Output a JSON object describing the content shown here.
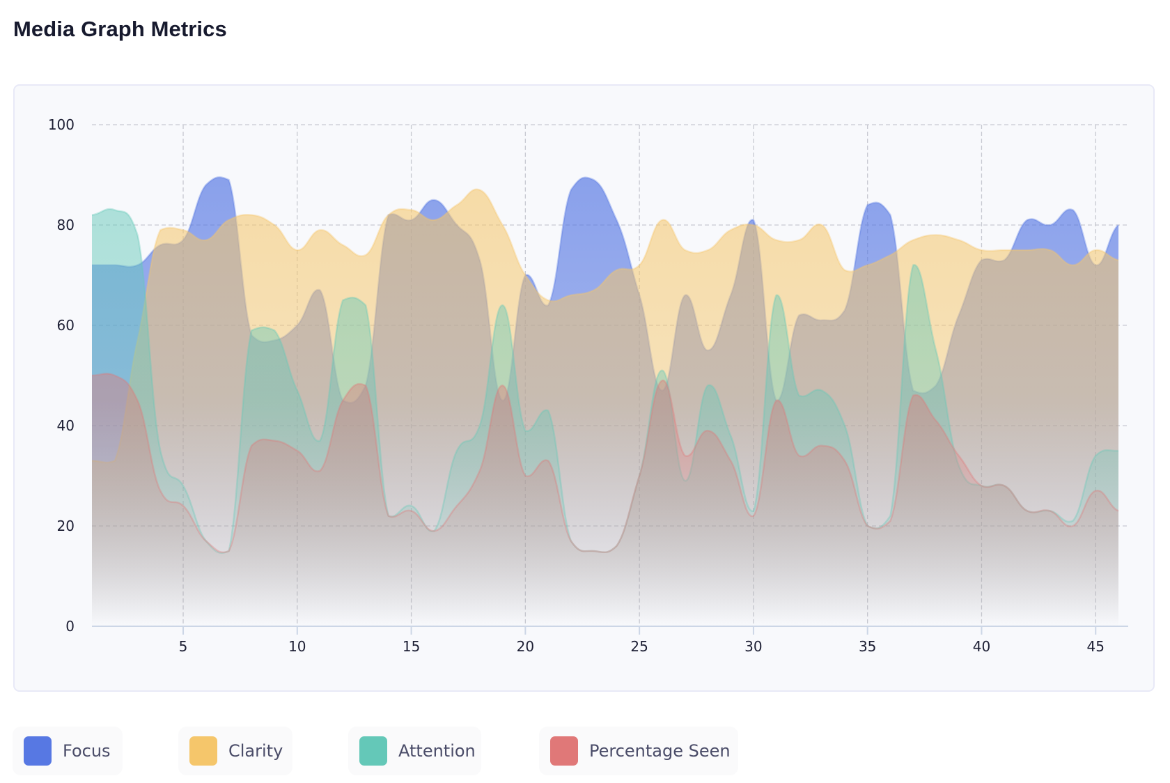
{
  "page": {
    "title": "Media Graph Metrics"
  },
  "legend": [
    {
      "label": "Focus",
      "color": "#5778e3",
      "icon": "square-swatch"
    },
    {
      "label": "Clarity",
      "color": "#f5c66b",
      "icon": "square-swatch"
    },
    {
      "label": "Attention",
      "color": "#64c8b8",
      "icon": "square-swatch"
    },
    {
      "label": "Percentage Seen",
      "color": "#e07878",
      "icon": "square-swatch"
    }
  ],
  "chart_data": {
    "type": "area",
    "title": "Media Graph Metrics",
    "xlabel": "",
    "ylabel": "",
    "xlim": [
      1,
      46
    ],
    "ylim": [
      0,
      100
    ],
    "xticks": [
      5,
      10,
      15,
      20,
      25,
      30,
      35,
      40,
      45
    ],
    "yticks": [
      0,
      20,
      40,
      60,
      80,
      100
    ],
    "grid": true,
    "legend_position": "bottom-left",
    "x": [
      1,
      2,
      3,
      4,
      5,
      6,
      7,
      8,
      9,
      10,
      11,
      12,
      13,
      14,
      15,
      16,
      17,
      18,
      19,
      20,
      21,
      22,
      23,
      24,
      25,
      26,
      27,
      28,
      29,
      30,
      31,
      32,
      33,
      34,
      35,
      36,
      37,
      38,
      39,
      40,
      41,
      42,
      43,
      44,
      45,
      46
    ],
    "series": [
      {
        "name": "Focus",
        "color": "#5778e3",
        "values": [
          72,
          72,
          72,
          76,
          77,
          88,
          89,
          58,
          57,
          60,
          67,
          45,
          48,
          82,
          81,
          85,
          80,
          73,
          45,
          70,
          64,
          87,
          89,
          81,
          66,
          47,
          66,
          55,
          66,
          81,
          45,
          62,
          61,
          63,
          84,
          82,
          47,
          48,
          62,
          73,
          73,
          81,
          80,
          83,
          72,
          80
        ]
      },
      {
        "name": "Clarity",
        "color": "#f5c66b",
        "values": [
          33,
          33,
          57,
          79,
          79,
          77,
          81,
          82,
          80,
          75,
          79,
          76,
          74,
          82,
          83,
          81,
          84,
          87,
          80,
          70,
          65,
          66,
          67,
          71,
          72,
          81,
          75,
          75,
          79,
          80,
          77,
          77,
          80,
          71,
          72,
          74,
          77,
          78,
          77,
          75,
          75,
          75,
          75,
          72,
          75,
          73
        ]
      },
      {
        "name": "Attention",
        "color": "#64c8b8",
        "values": [
          82,
          83,
          78,
          35,
          28,
          17,
          15,
          59,
          59,
          47,
          37,
          65,
          64,
          22,
          24,
          19,
          35,
          40,
          64,
          39,
          43,
          17,
          15,
          16,
          30,
          51,
          29,
          48,
          38,
          23,
          66,
          46,
          47,
          40,
          20,
          22,
          72,
          55,
          32,
          28,
          28,
          23,
          23,
          21,
          34,
          35
        ]
      },
      {
        "name": "Percentage Seen",
        "color": "#e07878",
        "values": [
          50,
          50,
          45,
          27,
          24,
          17,
          15,
          36,
          37,
          35,
          31,
          45,
          48,
          22,
          23,
          19,
          24,
          31,
          48,
          30,
          33,
          17,
          15,
          16,
          30,
          49,
          34,
          39,
          33,
          22,
          45,
          34,
          36,
          33,
          20,
          21,
          46,
          41,
          34,
          28,
          28,
          23,
          23,
          20,
          27,
          23
        ]
      }
    ]
  }
}
